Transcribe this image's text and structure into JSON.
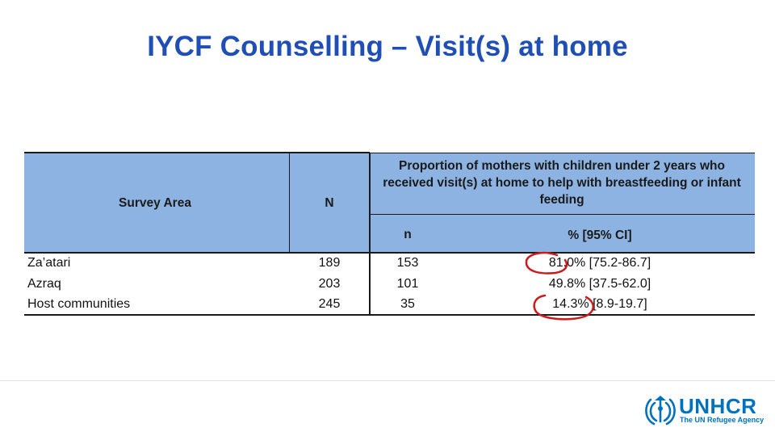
{
  "title": "IYCF Counselling – Visit(s) at home",
  "table": {
    "header": {
      "survey_area": "Survey Area",
      "N": "N",
      "proportion": "Proportion of mothers with children under 2 years who received visit(s) at home to help with breastfeeding or infant feeding",
      "n": "n",
      "pct": "% [95% CI]"
    },
    "rows": [
      {
        "area": "Za’atari",
        "N": "189",
        "n": "153",
        "pct": "81.0% [75.2-86.7]"
      },
      {
        "area": "Azraq",
        "N": "203",
        "n": "101",
        "pct": "49.8% [37.5-62.0]"
      },
      {
        "area": "Host communities",
        "N": "245",
        "n": "35",
        "pct": "14.3% [8.9-19.7]"
      }
    ],
    "annotation_color": "#cc1a1a",
    "header_color": "#8db3e2"
  },
  "logo": {
    "name": "UNHCR",
    "subtitle": "The UN Refugee Agency",
    "icon": "unhcr-emblem-icon",
    "color": "#0072bc"
  }
}
